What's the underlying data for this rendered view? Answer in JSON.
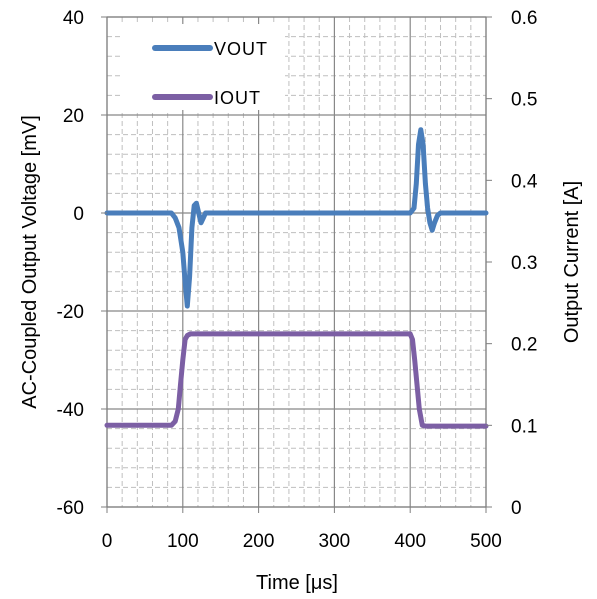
{
  "chart_data": {
    "type": "line",
    "title": "",
    "xlabel": "Time [μs]",
    "ylabel_left": "AC-Coupled  Output  Voltage  [mV]",
    "ylabel_right": "Output  Current  [A]",
    "xlim": [
      0,
      500
    ],
    "ylim_left": [
      -60,
      40
    ],
    "ylim_right": [
      0,
      0.6
    ],
    "x_ticks": [
      0,
      100,
      200,
      300,
      400,
      500
    ],
    "y_left_ticks": [
      -60,
      -40,
      -20,
      0,
      20,
      40
    ],
    "y_right_ticks": [
      0,
      0.1,
      0.2,
      0.3,
      0.4,
      0.5,
      0.6
    ],
    "x_tick_labels": [
      "0",
      "100",
      "200",
      "300",
      "400",
      "500"
    ],
    "y_left_tick_labels": [
      "-60",
      "-40",
      "-20",
      "0",
      "20",
      "40"
    ],
    "y_right_tick_labels": [
      "0",
      "0.1",
      "0.2",
      "0.3",
      "0.4",
      "0.5",
      "0.6"
    ],
    "grid": true,
    "legend_position": "top-left",
    "series": [
      {
        "name": "VOUT",
        "axis": "left",
        "color": "#4a7ebb",
        "x": [
          0,
          85,
          90,
          95,
          100,
          103,
          106,
          109,
          112,
          115,
          118,
          121,
          124,
          127,
          130,
          140,
          400,
          405,
          408,
          411,
          414,
          417,
          420,
          423,
          426,
          429,
          432,
          436,
          440,
          500
        ],
        "y": [
          0,
          0,
          -1,
          -3,
          -8,
          -14,
          -19,
          -13,
          -3,
          1.5,
          2,
          0,
          -2,
          -1,
          0,
          0,
          0,
          1,
          6,
          14,
          17,
          14,
          6,
          1,
          -2,
          -3.5,
          -2,
          -0.5,
          0,
          0
        ]
      },
      {
        "name": "IOUT",
        "axis": "right",
        "color": "#7c5fa4",
        "x": [
          0,
          85,
          90,
          94,
          97,
          100,
          103,
          106,
          110,
          400,
          403,
          406,
          409,
          412,
          416,
          420,
          500
        ],
        "y": [
          0.1,
          0.1,
          0.105,
          0.12,
          0.15,
          0.18,
          0.205,
          0.21,
          0.212,
          0.212,
          0.205,
          0.18,
          0.15,
          0.12,
          0.1,
          0.099,
          0.099
        ]
      }
    ]
  }
}
